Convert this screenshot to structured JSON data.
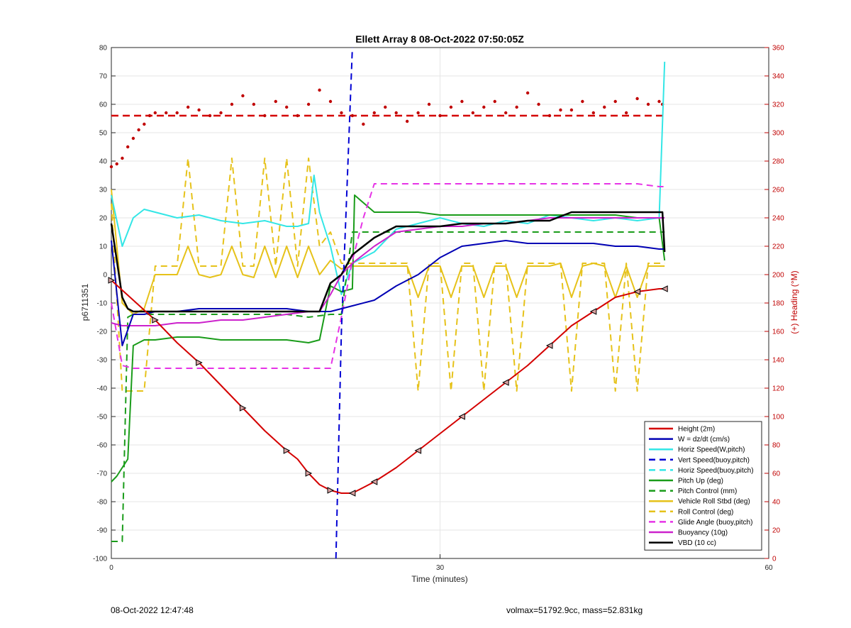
{
  "chart_data": {
    "type": "line",
    "title": "Ellett Array 8 08-Oct-2022 07:50:05Z",
    "xlabel": "Time (minutes)",
    "ylabel": "p6711351",
    "y2label": "(+) Heading (°M)",
    "xlim": [
      0,
      60
    ],
    "ylim": [
      -100,
      80
    ],
    "y2lim": [
      0,
      360
    ],
    "xticks": [
      "0",
      "30",
      "60"
    ],
    "yticks": [
      "-100",
      "-90",
      "-80",
      "-70",
      "-60",
      "-50",
      "-40",
      "-30",
      "-20",
      "-10",
      "0",
      "10",
      "20",
      "30",
      "40",
      "50",
      "60",
      "70",
      "80"
    ],
    "y2ticks": [
      "0",
      "20",
      "40",
      "60",
      "80",
      "100",
      "120",
      "140",
      "160",
      "180",
      "200",
      "220",
      "240",
      "260",
      "280",
      "300",
      "320",
      "340",
      "360"
    ],
    "grid": true,
    "legend_position": "bottom-right",
    "heading_target": 312,
    "heading_points": [
      [
        0,
        276
      ],
      [
        0.5,
        278
      ],
      [
        1,
        282
      ],
      [
        1.5,
        290
      ],
      [
        2,
        296
      ],
      [
        2.5,
        302
      ],
      [
        3,
        306
      ],
      [
        3.5,
        312
      ],
      [
        4,
        314
      ],
      [
        5,
        314
      ],
      [
        6,
        314
      ],
      [
        7,
        318
      ],
      [
        8,
        316
      ],
      [
        9,
        312
      ],
      [
        10,
        314
      ],
      [
        11,
        320
      ],
      [
        12,
        326
      ],
      [
        13,
        320
      ],
      [
        14,
        312
      ],
      [
        15,
        322
      ],
      [
        16,
        318
      ],
      [
        17,
        312
      ],
      [
        18,
        320
      ],
      [
        19,
        330
      ],
      [
        20,
        322
      ],
      [
        21,
        314
      ],
      [
        22,
        312
      ],
      [
        23,
        306
      ],
      [
        24,
        314
      ],
      [
        25,
        318
      ],
      [
        26,
        314
      ],
      [
        27,
        308
      ],
      [
        28,
        314
      ],
      [
        29,
        320
      ],
      [
        30,
        312
      ],
      [
        31,
        318
      ],
      [
        32,
        322
      ],
      [
        33,
        314
      ],
      [
        34,
        318
      ],
      [
        35,
        322
      ],
      [
        36,
        314
      ],
      [
        37,
        318
      ],
      [
        38,
        328
      ],
      [
        39,
        320
      ],
      [
        40,
        312
      ],
      [
        41,
        316
      ],
      [
        42,
        316
      ],
      [
        43,
        322
      ],
      [
        44,
        314
      ],
      [
        45,
        318
      ],
      [
        46,
        322
      ],
      [
        47,
        314
      ],
      [
        48,
        324
      ],
      [
        49,
        320
      ],
      [
        50,
        322
      ],
      [
        50.3,
        320
      ]
    ],
    "series": [
      {
        "name": "Height (2m)",
        "color": "#d40000",
        "style": "solid",
        "markers": true,
        "x": [
          0,
          2,
          4,
          6,
          8,
          10,
          12,
          14,
          16,
          17,
          18,
          19,
          20,
          21,
          22,
          23,
          24,
          26,
          28,
          30,
          32,
          34,
          36,
          38,
          40,
          42,
          44,
          46,
          48,
          50,
          50.5
        ],
        "y": [
          -2,
          -9,
          -16,
          -24,
          -31,
          -39,
          -47,
          -55,
          -62,
          -65,
          -70,
          -74,
          -76,
          -77,
          -77,
          -75,
          -73,
          -68,
          -62,
          -56,
          -50,
          -44,
          -38,
          -32,
          -25,
          -18,
          -13,
          -8,
          -6,
          -5,
          -5
        ]
      },
      {
        "name": "W = dz/dt (cm/s)",
        "color": "#0000b4",
        "style": "solid",
        "x": [
          0,
          1,
          2,
          3,
          4,
          6,
          8,
          10,
          12,
          14,
          16,
          18,
          19,
          20,
          22,
          24,
          26,
          28,
          30,
          32,
          34,
          36,
          38,
          40,
          42,
          44,
          46,
          48,
          50,
          50.5
        ],
        "y": [
          12,
          -25,
          -14,
          -14,
          -13,
          -13,
          -12,
          -12,
          -12,
          -12,
          -12,
          -13,
          -13,
          -13,
          -11,
          -9,
          -4,
          0,
          6,
          10,
          11,
          12,
          11,
          11,
          11,
          11,
          10,
          10,
          9,
          9
        ]
      },
      {
        "name": "Horiz Speed(W,pitch)",
        "color": "#33e6e6",
        "style": "solid",
        "x": [
          0,
          1,
          2,
          3,
          4,
          6,
          8,
          10,
          12,
          14,
          16,
          17,
          18,
          18.5,
          19,
          20,
          21,
          22,
          24,
          26,
          28,
          30,
          32,
          34,
          36,
          38,
          40,
          42,
          44,
          46,
          48,
          50,
          50.5
        ],
        "y": [
          28,
          10,
          20,
          23,
          22,
          20,
          21,
          19,
          18,
          19,
          17,
          17,
          18,
          35,
          22,
          10,
          -7,
          4,
          8,
          16,
          18,
          20,
          18,
          17,
          19,
          18,
          21,
          20,
          19,
          20,
          19,
          20,
          75
        ]
      },
      {
        "name": "Vert Speed(buoy,pitch)",
        "color": "#0000d4",
        "style": "dashed",
        "x": [
          20.5,
          21,
          21.5,
          22
        ],
        "y": [
          -100,
          -20,
          30,
          80
        ]
      },
      {
        "name": "Horiz Speed(buoy,pitch)",
        "color": "#33e6e6",
        "style": "dashed",
        "x": [],
        "y": []
      },
      {
        "name": "Pitch Up (deg)",
        "color": "#1a9c1a",
        "style": "solid",
        "x": [
          0,
          0.5,
          1,
          1.5,
          2,
          3,
          4,
          6,
          8,
          10,
          12,
          14,
          16,
          18,
          19,
          20,
          21,
          22,
          22.2,
          24,
          26,
          28,
          30,
          32,
          34,
          36,
          38,
          40,
          42,
          44,
          46,
          48,
          50,
          50.5
        ],
        "y": [
          -73,
          -71,
          -68,
          -65,
          -25,
          -23,
          -23,
          -22,
          -22,
          -23,
          -23,
          -23,
          -23,
          -24,
          -23,
          -4,
          -6,
          -5,
          28,
          22,
          22,
          22,
          21,
          21,
          21,
          21,
          21,
          21,
          21,
          21,
          21,
          20,
          20,
          5
        ]
      },
      {
        "name": "Pitch Control (mm)",
        "color": "#1a9c1a",
        "style": "dashed",
        "x": [
          0,
          1,
          1.5,
          2,
          4,
          6,
          8,
          10,
          12,
          14,
          16,
          18,
          20,
          21,
          22,
          24,
          26,
          28,
          30,
          32,
          34,
          36,
          38,
          40,
          42,
          44,
          46,
          48,
          50,
          50.5
        ],
        "y": [
          -94,
          -94,
          -15,
          -14,
          -14,
          -14,
          -14,
          -14,
          -14,
          -14,
          -14,
          -15,
          -14,
          -14,
          15,
          15,
          15,
          15,
          15,
          15,
          15,
          15,
          15,
          15,
          15,
          15,
          15,
          15,
          15,
          15
        ]
      },
      {
        "name": "Vehicle Roll Stbd (deg)",
        "color": "#e6c21a",
        "style": "solid",
        "x": [
          0,
          1,
          2,
          3,
          4,
          5,
          6,
          7,
          8,
          9,
          10,
          11,
          12,
          13,
          14,
          15,
          16,
          17,
          18,
          19,
          20,
          21,
          22,
          23,
          24,
          25,
          26,
          27,
          28,
          29,
          30,
          31,
          32,
          33,
          34,
          35,
          36,
          37,
          38,
          39,
          40,
          41,
          42,
          43,
          44,
          45,
          46,
          47,
          48,
          49,
          50,
          50.5
        ],
        "y": [
          30,
          -10,
          -14,
          -12,
          0,
          0,
          0,
          10,
          0,
          -1,
          0,
          10,
          0,
          -1,
          10,
          -1,
          10,
          -1,
          10,
          0,
          5,
          2,
          3,
          3,
          3,
          3,
          3,
          3,
          -8,
          3,
          3,
          -8,
          3,
          3,
          -8,
          3,
          3,
          -8,
          3,
          3,
          3,
          4,
          -8,
          3,
          4,
          3,
          -8,
          3,
          -8,
          3,
          3,
          3
        ]
      },
      {
        "name": "Roll Control (deg)",
        "color": "#e6c21a",
        "style": "dashed",
        "x": [
          0,
          1,
          2,
          3,
          4,
          5,
          6,
          7,
          8,
          9,
          10,
          11,
          12,
          13,
          14,
          15,
          16,
          17,
          18,
          19,
          20,
          21,
          22,
          23,
          24,
          25,
          26,
          27,
          28,
          29,
          30,
          31,
          32,
          33,
          34,
          35,
          36,
          37,
          38,
          39,
          40,
          41,
          42,
          43,
          44,
          45,
          46,
          47,
          48,
          49,
          50,
          50.5
        ],
        "y": [
          25,
          -41,
          -41,
          -41,
          3,
          3,
          3,
          41,
          3,
          3,
          3,
          41,
          3,
          3,
          41,
          3,
          41,
          3,
          41,
          10,
          15,
          4,
          4,
          4,
          4,
          4,
          4,
          4,
          -41,
          4,
          4,
          -41,
          4,
          4,
          -41,
          4,
          4,
          -41,
          4,
          4,
          4,
          4,
          -41,
          4,
          4,
          4,
          -41,
          4,
          -41,
          4,
          4,
          4
        ]
      },
      {
        "name": "Glide Angle (buoy,pitch)",
        "color": "#e633e6",
        "style": "dashed",
        "x": [
          0,
          1,
          2,
          3,
          4,
          6,
          8,
          10,
          12,
          14,
          16,
          18,
          19,
          20,
          21,
          22,
          23,
          24,
          26,
          28,
          30,
          32,
          34,
          36,
          38,
          40,
          42,
          44,
          46,
          48,
          50,
          50.5
        ],
        "y": [
          -10,
          -32,
          -33,
          -33,
          -33,
          -33,
          -33,
          -33,
          -33,
          -33,
          -33,
          -33,
          -33,
          -33,
          -15,
          5,
          20,
          32,
          32,
          32,
          32,
          32,
          32,
          32,
          32,
          32,
          32,
          32,
          32,
          32,
          31,
          31
        ]
      },
      {
        "name": "Buoyancy (10g)",
        "color": "#cc22cc",
        "style": "solid",
        "x": [
          0,
          1,
          2,
          4,
          6,
          8,
          10,
          12,
          14,
          16,
          18,
          19,
          20,
          21,
          22,
          24,
          26,
          28,
          30,
          32,
          34,
          36,
          38,
          40,
          42,
          44,
          46,
          48,
          50,
          50.5
        ],
        "y": [
          -17,
          -18,
          -18,
          -18,
          -17,
          -17,
          -16,
          -16,
          -15,
          -14,
          -13,
          -13,
          -7,
          0,
          4,
          10,
          15,
          16,
          17,
          17,
          18,
          18,
          19,
          20,
          20,
          20,
          20,
          20,
          20,
          20
        ]
      },
      {
        "name": "VBD (10 cc)",
        "color": "#000000",
        "style": "solid",
        "x": [
          0,
          0.5,
          1,
          1.5,
          2,
          4,
          6,
          8,
          10,
          12,
          14,
          16,
          18,
          19,
          20,
          21,
          22,
          24,
          26,
          28,
          30,
          32,
          34,
          36,
          38,
          40,
          42,
          44,
          46,
          48,
          50,
          50.3,
          50.5
        ],
        "y": [
          18,
          5,
          -8,
          -12,
          -13,
          -13,
          -13,
          -13,
          -13,
          -13,
          -13,
          -13,
          -13,
          -13,
          -3,
          0,
          7,
          13,
          17,
          17,
          17,
          18,
          18,
          18,
          19,
          19,
          22,
          22,
          22,
          22,
          22,
          22,
          8
        ]
      }
    ]
  },
  "footer": {
    "left": "08-Oct-2022 12:47:48",
    "right": "volmax=51792.9cc, mass=52.831kg"
  }
}
